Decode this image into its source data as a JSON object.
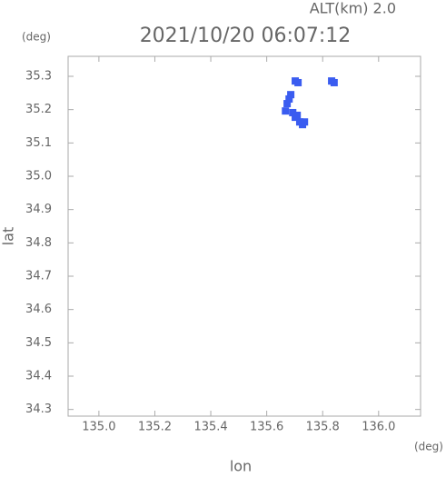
{
  "chart_data": {
    "type": "scatter",
    "title": "2021/10/20 06:07:12",
    "annotation": "ALT(km) 2.0",
    "y_unit": "(deg)",
    "x_unit": "(deg)",
    "x_label": "lon",
    "y_label": "lat",
    "xlim": [
      134.89,
      136.15
    ],
    "ylim": [
      34.28,
      35.36
    ],
    "xticks": [
      {
        "value": 135,
        "label": "135.0"
      },
      135.2,
      135.4,
      135.6,
      135.8,
      {
        "value": 136,
        "label": "136.0"
      }
    ],
    "yticks": [
      34.3,
      34.4,
      34.5,
      34.6,
      34.7,
      34.8,
      34.9,
      {
        "value": 35,
        "label": "35.0"
      },
      35.1,
      35.2,
      35.3
    ],
    "series": [
      {
        "color": "#3a5cf0",
        "x": [
          135.702,
          135.712,
          135.832,
          135.841,
          135.686,
          135.68,
          135.673,
          135.693,
          135.702,
          135.718,
          135.735,
          135.728,
          135.709,
          135.667
        ],
        "values": [
          35.286,
          35.281,
          35.286,
          35.281,
          35.245,
          35.232,
          35.218,
          35.191,
          35.177,
          35.163,
          35.163,
          35.155,
          35.183,
          35.196
        ]
      }
    ]
  }
}
